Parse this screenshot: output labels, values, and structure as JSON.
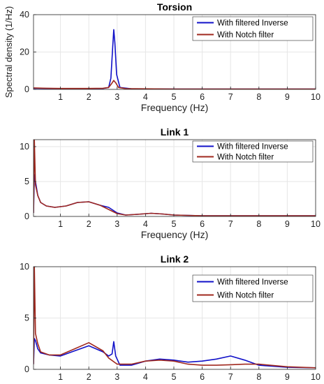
{
  "chart_data": [
    {
      "type": "line",
      "title": "Torsion",
      "xlabel": "Frequency (Hz)",
      "ylabel": "Spectral density (1/Hz)",
      "xlim": [
        0.05,
        10
      ],
      "ylim": [
        0,
        40
      ],
      "xticks": [
        1,
        2,
        3,
        4,
        5,
        6,
        7,
        8,
        9,
        10
      ],
      "yticks": [
        0,
        20,
        40
      ],
      "grid": true,
      "legend_position": "top-right",
      "series": [
        {
          "name": "With filtered Inverse",
          "color": "#1010c8",
          "x": [
            0.05,
            0.5,
            1.0,
            2.0,
            2.5,
            2.7,
            2.78,
            2.84,
            2.88,
            2.92,
            2.98,
            3.1,
            3.5,
            5.0,
            7.0,
            10.0
          ],
          "y": [
            0.6,
            0.5,
            0.4,
            0.4,
            0.5,
            1.0,
            6.0,
            22.0,
            32.0,
            25.0,
            8.0,
            1.0,
            0.3,
            0.2,
            0.2,
            0.2
          ]
        },
        {
          "name": "With Notch filter",
          "color": "#a0281e",
          "x": [
            0.05,
            0.5,
            1.0,
            2.0,
            2.5,
            2.7,
            2.8,
            2.88,
            2.95,
            3.05,
            3.3,
            5.0,
            7.0,
            10.0
          ],
          "y": [
            0.8,
            0.6,
            0.5,
            0.5,
            0.6,
            1.0,
            3.0,
            4.8,
            3.5,
            1.0,
            0.4,
            0.2,
            0.2,
            0.2
          ]
        }
      ]
    },
    {
      "type": "line",
      "title": "Link 1",
      "xlabel": "Frequency (Hz)",
      "ylabel": "",
      "xlim": [
        0.05,
        10
      ],
      "ylim": [
        0,
        11
      ],
      "xticks": [
        1,
        2,
        3,
        4,
        5,
        6,
        7,
        8,
        9,
        10
      ],
      "yticks": [
        0,
        5,
        10
      ],
      "grid": true,
      "legend_position": "top-right",
      "series": [
        {
          "name": "With filtered Inverse",
          "color": "#1010c8",
          "x": [
            0.05,
            0.08,
            0.12,
            0.2,
            0.3,
            0.5,
            0.8,
            1.2,
            1.6,
            2.0,
            2.4,
            2.7,
            2.85,
            3.0,
            3.3,
            3.7,
            4.2,
            4.6,
            5.0,
            6.0,
            8.0,
            10.0
          ],
          "y": [
            0.5,
            6.0,
            5.0,
            3.0,
            2.0,
            1.5,
            1.3,
            1.5,
            2.0,
            2.1,
            1.6,
            1.3,
            0.9,
            0.5,
            0.2,
            0.3,
            0.45,
            0.35,
            0.2,
            0.1,
            0.1,
            0.1
          ]
        },
        {
          "name": "With Notch filter",
          "color": "#a0281e",
          "x": [
            0.05,
            0.08,
            0.12,
            0.2,
            0.3,
            0.5,
            0.8,
            1.2,
            1.6,
            2.0,
            2.4,
            2.7,
            3.0,
            3.3,
            3.7,
            4.2,
            4.6,
            5.0,
            6.0,
            8.0,
            10.0
          ],
          "y": [
            0.5,
            11.0,
            4.5,
            3.0,
            2.0,
            1.5,
            1.3,
            1.5,
            2.0,
            2.1,
            1.6,
            1.0,
            0.4,
            0.2,
            0.3,
            0.45,
            0.35,
            0.2,
            0.1,
            0.1,
            0.1
          ]
        }
      ]
    },
    {
      "type": "line",
      "title": "Link 2",
      "xlabel": "Frequency (Hz)",
      "ylabel": "",
      "xlim": [
        0.05,
        10
      ],
      "ylim": [
        0,
        10
      ],
      "xticks": [
        1,
        2,
        3,
        4,
        5,
        6,
        7,
        8,
        9,
        10
      ],
      "yticks": [
        0,
        5,
        10
      ],
      "grid": true,
      "legend_position": "top-right",
      "series": [
        {
          "name": "With filtered Inverse",
          "color": "#1010c8",
          "x": [
            0.05,
            0.08,
            0.12,
            0.2,
            0.3,
            0.6,
            1.0,
            1.5,
            2.0,
            2.5,
            2.7,
            2.82,
            2.88,
            2.95,
            3.1,
            3.5,
            4.0,
            4.5,
            5.0,
            5.5,
            6.0,
            6.5,
            7.0,
            7.5,
            8.0,
            9.0,
            10.0
          ],
          "y": [
            0.5,
            3.0,
            2.8,
            2.0,
            1.6,
            1.4,
            1.3,
            1.8,
            2.3,
            1.7,
            1.3,
            1.5,
            2.7,
            1.3,
            0.4,
            0.4,
            0.8,
            1.0,
            0.9,
            0.7,
            0.8,
            1.0,
            1.3,
            0.9,
            0.4,
            0.2,
            0.15
          ]
        },
        {
          "name": "With Notch filter",
          "color": "#a0281e",
          "x": [
            0.05,
            0.08,
            0.12,
            0.2,
            0.3,
            0.6,
            1.0,
            1.5,
            2.0,
            2.5,
            2.7,
            3.0,
            3.5,
            4.0,
            4.5,
            5.0,
            5.5,
            6.0,
            6.5,
            7.0,
            7.5,
            8.0,
            9.0,
            10.0
          ],
          "y": [
            0.5,
            10.0,
            3.5,
            2.5,
            1.7,
            1.4,
            1.4,
            2.0,
            2.6,
            1.8,
            1.1,
            0.5,
            0.5,
            0.8,
            0.9,
            0.8,
            0.5,
            0.4,
            0.4,
            0.45,
            0.5,
            0.5,
            0.25,
            0.15
          ]
        }
      ]
    }
  ]
}
